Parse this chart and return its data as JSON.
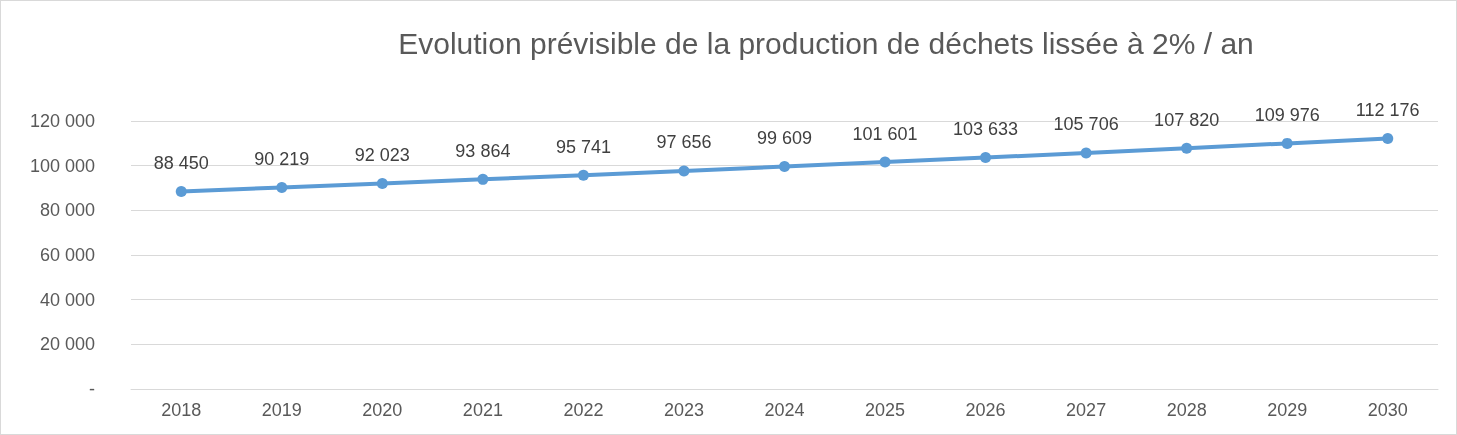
{
  "chart_data": {
    "type": "line",
    "title": "Evolution prévisible de la production de déchets lissée à 2% / an",
    "categories": [
      "2018",
      "2019",
      "2020",
      "2021",
      "2022",
      "2023",
      "2024",
      "2025",
      "2026",
      "2027",
      "2028",
      "2029",
      "2030"
    ],
    "series": [
      {
        "color": "#5b9bd5",
        "values": [
          88450,
          90219,
          92023,
          93864,
          95741,
          97656,
          99609,
          101601,
          103633,
          105706,
          107820,
          109976,
          112176
        ],
        "value_labels": [
          "88 450",
          "90 219",
          "92 023",
          "93 864",
          "95 741",
          "97 656",
          "99 609",
          "101 601",
          "103 633",
          "105 706",
          "107 820",
          "109 976",
          "112 176"
        ]
      }
    ],
    "ylim": [
      0,
      120000
    ],
    "yticks": [
      {
        "value": 0,
        "label": "-"
      },
      {
        "value": 20000,
        "label": "20 000"
      },
      {
        "value": 40000,
        "label": "40 000"
      },
      {
        "value": 60000,
        "label": "60 000"
      },
      {
        "value": 80000,
        "label": "80 000"
      },
      {
        "value": 100000,
        "label": "100 000"
      },
      {
        "value": 120000,
        "label": "120 000"
      }
    ],
    "grid": "y",
    "marker": "circle",
    "line_style": "solid"
  }
}
